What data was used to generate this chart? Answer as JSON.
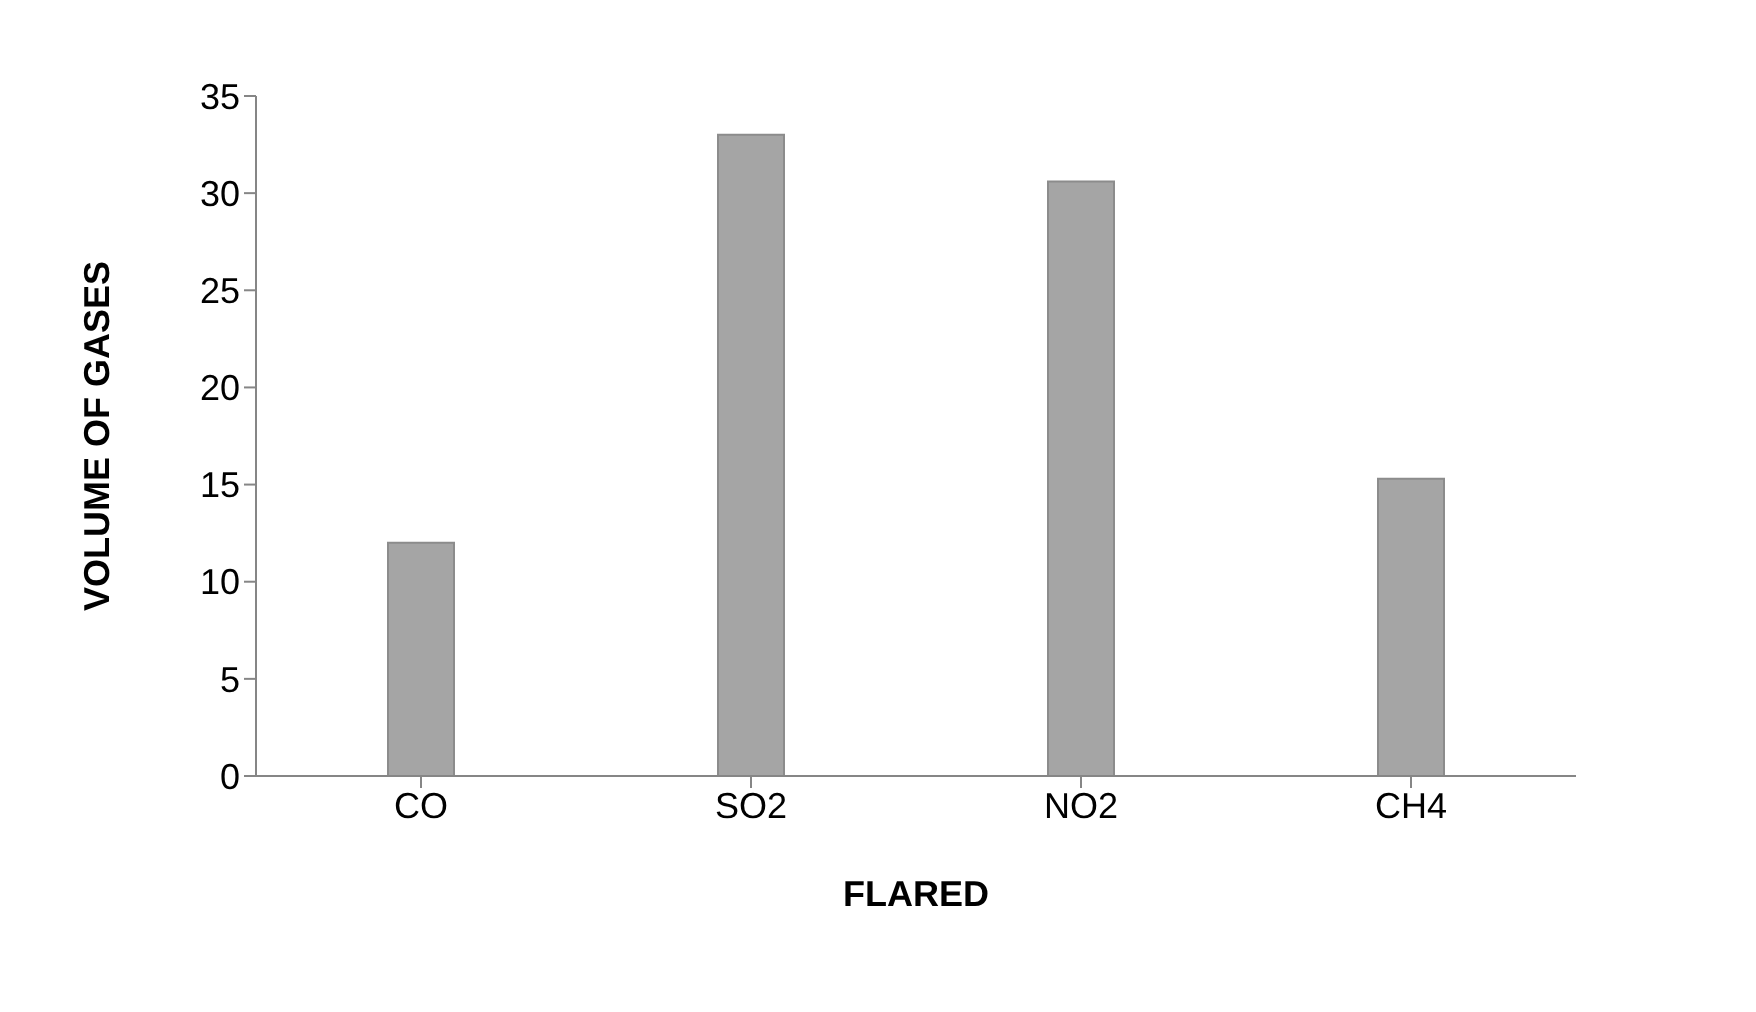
{
  "chart_data": {
    "type": "bar",
    "xlabel": "FLARED",
    "ylabel": "VOLUME OF GASES",
    "categories": [
      "CO",
      "SO2",
      "NO2",
      "CH4"
    ],
    "series": [
      {
        "color": "#a5a5a5",
        "values": [
          12,
          33,
          30.6,
          15.3
        ]
      }
    ],
    "ylim": [
      0,
      35
    ],
    "yticks": [
      0,
      5,
      10,
      15,
      20,
      25,
      30,
      35
    ],
    "grid": false,
    "legend": false
  }
}
